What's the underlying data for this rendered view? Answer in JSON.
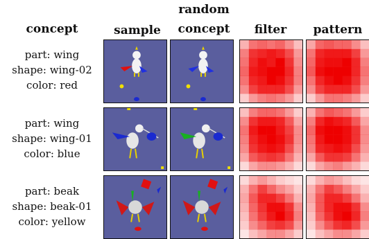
{
  "headers": {
    "concept": "concept",
    "sample": "sample",
    "random_concept_line1": "random",
    "random_concept_line2": "concept",
    "filter": "filter",
    "pattern": "pattern"
  },
  "rows": [
    {
      "part": "part: wing",
      "shape": "shape: wing-02",
      "color": "color: red",
      "filter_grid": [
        [
          0.3,
          0.55,
          0.6,
          0.55,
          0.6,
          0.45,
          0.25
        ],
        [
          0.5,
          0.8,
          0.85,
          0.9,
          0.85,
          0.7,
          0.4
        ],
        [
          0.55,
          0.85,
          0.95,
          0.9,
          1.0,
          0.8,
          0.45
        ],
        [
          0.6,
          0.9,
          0.95,
          1.0,
          1.0,
          0.85,
          0.5
        ],
        [
          0.55,
          0.85,
          0.9,
          1.0,
          0.95,
          0.8,
          0.5
        ],
        [
          0.45,
          0.75,
          0.85,
          0.85,
          0.85,
          0.7,
          0.4
        ],
        [
          0.2,
          0.4,
          0.5,
          0.55,
          0.5,
          0.4,
          0.2
        ]
      ],
      "pattern_grid": [
        [
          0.35,
          0.6,
          0.65,
          0.6,
          0.6,
          0.45,
          0.25
        ],
        [
          0.55,
          0.85,
          0.9,
          0.9,
          0.9,
          0.75,
          0.4
        ],
        [
          0.6,
          0.9,
          0.95,
          0.95,
          1.0,
          0.85,
          0.5
        ],
        [
          0.65,
          0.95,
          1.0,
          1.0,
          1.0,
          0.85,
          0.55
        ],
        [
          0.55,
          0.85,
          0.95,
          1.0,
          0.95,
          0.8,
          0.5
        ],
        [
          0.45,
          0.75,
          0.85,
          0.85,
          0.85,
          0.7,
          0.4
        ],
        [
          0.2,
          0.4,
          0.55,
          0.55,
          0.5,
          0.4,
          0.2
        ]
      ]
    },
    {
      "part": "part: wing",
      "shape": "shape: wing-01",
      "color": "color: blue",
      "filter_grid": [
        [
          0.25,
          0.5,
          0.6,
          0.6,
          0.55,
          0.4,
          0.2
        ],
        [
          0.45,
          0.8,
          0.9,
          0.9,
          0.85,
          0.65,
          0.35
        ],
        [
          0.55,
          0.9,
          1.0,
          1.0,
          0.9,
          0.75,
          0.45
        ],
        [
          0.5,
          0.85,
          0.95,
          1.0,
          0.95,
          0.8,
          0.45
        ],
        [
          0.45,
          0.8,
          0.9,
          0.95,
          0.9,
          0.7,
          0.4
        ],
        [
          0.35,
          0.65,
          0.75,
          0.8,
          0.75,
          0.55,
          0.3
        ],
        [
          0.15,
          0.35,
          0.45,
          0.45,
          0.4,
          0.3,
          0.15
        ]
      ],
      "pattern_grid": [
        [
          0.3,
          0.55,
          0.65,
          0.6,
          0.55,
          0.4,
          0.2
        ],
        [
          0.5,
          0.85,
          0.95,
          0.9,
          0.85,
          0.65,
          0.35
        ],
        [
          0.6,
          0.95,
          1.0,
          1.0,
          0.95,
          0.8,
          0.45
        ],
        [
          0.55,
          0.9,
          1.0,
          1.0,
          0.95,
          0.8,
          0.45
        ],
        [
          0.5,
          0.85,
          0.9,
          0.95,
          0.9,
          0.7,
          0.4
        ],
        [
          0.35,
          0.65,
          0.8,
          0.8,
          0.75,
          0.55,
          0.3
        ],
        [
          0.15,
          0.35,
          0.45,
          0.5,
          0.4,
          0.3,
          0.15
        ]
      ]
    },
    {
      "part": "part: beak",
      "shape": "shape: beak-01",
      "color": "color: yellow",
      "filter_grid": [
        [
          0.15,
          0.3,
          0.4,
          0.3,
          0.2,
          0.15,
          0.1
        ],
        [
          0.3,
          0.55,
          0.75,
          0.6,
          0.45,
          0.35,
          0.2
        ],
        [
          0.35,
          0.65,
          0.85,
          0.85,
          0.75,
          0.55,
          0.3
        ],
        [
          0.3,
          0.6,
          0.8,
          0.95,
          0.95,
          0.8,
          0.45
        ],
        [
          0.25,
          0.55,
          0.75,
          0.9,
          1.0,
          0.85,
          0.5
        ],
        [
          0.2,
          0.45,
          0.6,
          0.75,
          0.8,
          0.7,
          0.4
        ],
        [
          0.1,
          0.25,
          0.35,
          0.45,
          0.45,
          0.35,
          0.2
        ]
      ],
      "pattern_grid": [
        [
          0.15,
          0.3,
          0.4,
          0.35,
          0.25,
          0.15,
          0.1
        ],
        [
          0.3,
          0.55,
          0.75,
          0.65,
          0.5,
          0.35,
          0.2
        ],
        [
          0.35,
          0.65,
          0.85,
          0.85,
          0.75,
          0.55,
          0.3
        ],
        [
          0.3,
          0.65,
          0.85,
          0.95,
          0.95,
          0.8,
          0.45
        ],
        [
          0.25,
          0.6,
          0.8,
          0.95,
          1.0,
          0.85,
          0.5
        ],
        [
          0.2,
          0.45,
          0.65,
          0.8,
          0.85,
          0.7,
          0.4
        ],
        [
          0.1,
          0.25,
          0.35,
          0.45,
          0.45,
          0.35,
          0.2
        ]
      ]
    }
  ],
  "colors": {
    "render_background": "#5a5e9e",
    "heat": "#ee0000"
  }
}
